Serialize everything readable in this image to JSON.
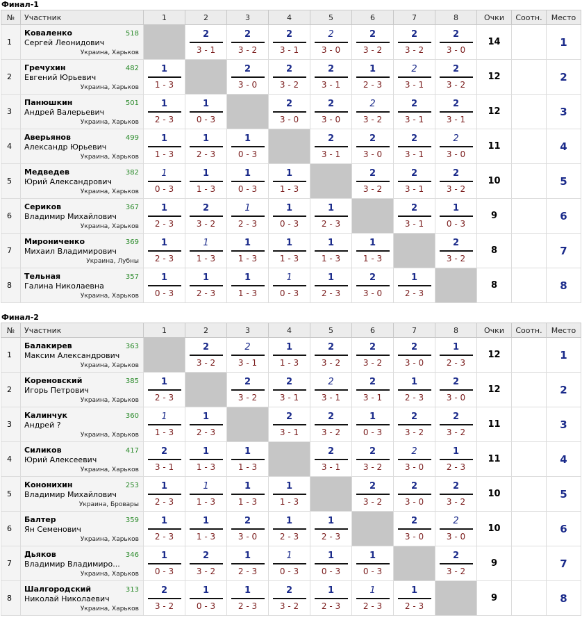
{
  "headers": {
    "num": "№",
    "participant": "Участник",
    "rounds": [
      "1",
      "2",
      "3",
      "4",
      "5",
      "6",
      "7",
      "8"
    ],
    "points": "Очки",
    "ratio": "Соотн.",
    "place": "Место"
  },
  "finals": [
    {
      "title": "Финал-1",
      "rows": [
        {
          "num": "1",
          "name": "Коваленко",
          "full": "Сергей Леонидович",
          "rating": "518",
          "city": "Украина, Харьков",
          "points": "14",
          "ratio": "",
          "place": "1",
          "cells": [
            null,
            {
              "p": "2",
              "s": "3 - 1"
            },
            {
              "p": "2",
              "s": "3 - 2"
            },
            {
              "p": "2",
              "s": "3 - 1"
            },
            {
              "p": "2",
              "s": "3 - 0",
              "i": true
            },
            {
              "p": "2",
              "s": "3 - 2"
            },
            {
              "p": "2",
              "s": "3 - 2"
            },
            {
              "p": "2",
              "s": "3 - 0"
            }
          ]
        },
        {
          "num": "2",
          "name": "Гречухин",
          "full": "Евгений Юрьевич",
          "rating": "482",
          "city": "Украина, Харьков",
          "points": "12",
          "ratio": "",
          "place": "2",
          "cells": [
            {
              "p": "1",
              "s": "1 - 3"
            },
            null,
            {
              "p": "2",
              "s": "3 - 0"
            },
            {
              "p": "2",
              "s": "3 - 2"
            },
            {
              "p": "2",
              "s": "3 - 1"
            },
            {
              "p": "1",
              "s": "2 - 3"
            },
            {
              "p": "2",
              "s": "3 - 1",
              "i": true
            },
            {
              "p": "2",
              "s": "3 - 2"
            }
          ]
        },
        {
          "num": "3",
          "name": "Панюшкин",
          "full": "Андрей Валерьевич",
          "rating": "501",
          "city": "Украина, Харьков",
          "points": "12",
          "ratio": "",
          "place": "3",
          "cells": [
            {
              "p": "1",
              "s": "2 - 3"
            },
            {
              "p": "1",
              "s": "0 - 3"
            },
            null,
            {
              "p": "2",
              "s": "3 - 0"
            },
            {
              "p": "2",
              "s": "3 - 0"
            },
            {
              "p": "2",
              "s": "3 - 2",
              "i": true
            },
            {
              "p": "2",
              "s": "3 - 1"
            },
            {
              "p": "2",
              "s": "3 - 1"
            }
          ]
        },
        {
          "num": "4",
          "name": "Аверьянов",
          "full": "Александр Юрьевич",
          "rating": "499",
          "city": "Украина, Харьков",
          "points": "11",
          "ratio": "",
          "place": "4",
          "cells": [
            {
              "p": "1",
              "s": "1 - 3"
            },
            {
              "p": "1",
              "s": "2 - 3"
            },
            {
              "p": "1",
              "s": "0 - 3"
            },
            null,
            {
              "p": "2",
              "s": "3 - 1"
            },
            {
              "p": "2",
              "s": "3 - 0"
            },
            {
              "p": "2",
              "s": "3 - 1"
            },
            {
              "p": "2",
              "s": "3 - 0",
              "i": true
            }
          ]
        },
        {
          "num": "5",
          "name": "Медведев",
          "full": "Юрий Александрович",
          "rating": "382",
          "city": "Украина, Харьков",
          "points": "10",
          "ratio": "",
          "place": "5",
          "cells": [
            {
              "p": "1",
              "s": "0 - 3",
              "i": true
            },
            {
              "p": "1",
              "s": "1 - 3"
            },
            {
              "p": "1",
              "s": "0 - 3"
            },
            {
              "p": "1",
              "s": "1 - 3"
            },
            null,
            {
              "p": "2",
              "s": "3 - 2"
            },
            {
              "p": "2",
              "s": "3 - 1"
            },
            {
              "p": "2",
              "s": "3 - 2"
            }
          ]
        },
        {
          "num": "6",
          "name": "Сериков",
          "full": "Владимир Михайлович",
          "rating": "367",
          "city": "Украина, Харьков",
          "points": "9",
          "ratio": "",
          "place": "6",
          "cells": [
            {
              "p": "1",
              "s": "2 - 3"
            },
            {
              "p": "2",
              "s": "3 - 2"
            },
            {
              "p": "1",
              "s": "2 - 3",
              "i": true
            },
            {
              "p": "1",
              "s": "0 - 3"
            },
            {
              "p": "1",
              "s": "2 - 3"
            },
            null,
            {
              "p": "2",
              "s": "3 - 1"
            },
            {
              "p": "1",
              "s": "0 - 3"
            }
          ]
        },
        {
          "num": "7",
          "name": "Мирониченко",
          "full": "Михаил Владимирович",
          "rating": "369",
          "city": "Украина, Лубны",
          "points": "8",
          "ratio": "",
          "place": "7",
          "cells": [
            {
              "p": "1",
              "s": "2 - 3"
            },
            {
              "p": "1",
              "s": "1 - 3",
              "i": true
            },
            {
              "p": "1",
              "s": "1 - 3"
            },
            {
              "p": "1",
              "s": "1 - 3"
            },
            {
              "p": "1",
              "s": "1 - 3"
            },
            {
              "p": "1",
              "s": "1 - 3"
            },
            null,
            {
              "p": "2",
              "s": "3 - 2"
            }
          ]
        },
        {
          "num": "8",
          "name": "Тельная",
          "full": "Галина Николаевна",
          "rating": "357",
          "city": "Украина, Харьков",
          "points": "8",
          "ratio": "",
          "place": "8",
          "cells": [
            {
              "p": "1",
              "s": "0 - 3"
            },
            {
              "p": "1",
              "s": "2 - 3"
            },
            {
              "p": "1",
              "s": "1 - 3"
            },
            {
              "p": "1",
              "s": "0 - 3",
              "i": true
            },
            {
              "p": "1",
              "s": "2 - 3"
            },
            {
              "p": "2",
              "s": "3 - 0"
            },
            {
              "p": "1",
              "s": "2 - 3"
            },
            null
          ]
        }
      ]
    },
    {
      "title": "Финал-2",
      "rows": [
        {
          "num": "1",
          "name": "Балакирев",
          "full": "Максим Александрович",
          "rating": "363",
          "city": "Украина, Харьков",
          "points": "12",
          "ratio": "",
          "place": "1",
          "cells": [
            null,
            {
              "p": "2",
              "s": "3 - 2"
            },
            {
              "p": "2",
              "s": "3 - 1",
              "i": true
            },
            {
              "p": "1",
              "s": "1 - 3"
            },
            {
              "p": "2",
              "s": "3 - 2"
            },
            {
              "p": "2",
              "s": "3 - 2"
            },
            {
              "p": "2",
              "s": "3 - 0"
            },
            {
              "p": "1",
              "s": "2 - 3"
            }
          ]
        },
        {
          "num": "2",
          "name": "Кореновский",
          "full": "Игорь Петрович",
          "rating": "385",
          "city": "Украина, Харьков",
          "points": "12",
          "ratio": "",
          "place": "2",
          "cells": [
            {
              "p": "1",
              "s": "2 - 3"
            },
            null,
            {
              "p": "2",
              "s": "3 - 2"
            },
            {
              "p": "2",
              "s": "3 - 1"
            },
            {
              "p": "2",
              "s": "3 - 1",
              "i": true
            },
            {
              "p": "2",
              "s": "3 - 1"
            },
            {
              "p": "1",
              "s": "2 - 3"
            },
            {
              "p": "2",
              "s": "3 - 0"
            }
          ]
        },
        {
          "num": "3",
          "name": "Калинчук",
          "full": "Андрей ?",
          "rating": "360",
          "city": "Украина, Харьков",
          "points": "11",
          "ratio": "",
          "place": "3",
          "cells": [
            {
              "p": "1",
              "s": "1 - 3",
              "i": true
            },
            {
              "p": "1",
              "s": "2 - 3"
            },
            null,
            {
              "p": "2",
              "s": "3 - 1"
            },
            {
              "p": "2",
              "s": "3 - 2"
            },
            {
              "p": "1",
              "s": "0 - 3"
            },
            {
              "p": "2",
              "s": "3 - 2"
            },
            {
              "p": "2",
              "s": "3 - 2"
            }
          ]
        },
        {
          "num": "4",
          "name": "Силиков",
          "full": "Юрий Алексеевич",
          "rating": "417",
          "city": "Украина, Харьков",
          "points": "11",
          "ratio": "",
          "place": "4",
          "cells": [
            {
              "p": "2",
              "s": "3 - 1"
            },
            {
              "p": "1",
              "s": "1 - 3"
            },
            {
              "p": "1",
              "s": "1 - 3"
            },
            null,
            {
              "p": "2",
              "s": "3 - 1"
            },
            {
              "p": "2",
              "s": "3 - 2"
            },
            {
              "p": "2",
              "s": "3 - 0",
              "i": true
            },
            {
              "p": "1",
              "s": "2 - 3"
            }
          ]
        },
        {
          "num": "5",
          "name": "Кононихин",
          "full": "Владимир Михайлович",
          "rating": "253",
          "city": "Украина, Бровары",
          "points": "10",
          "ratio": "",
          "place": "5",
          "cells": [
            {
              "p": "1",
              "s": "2 - 3"
            },
            {
              "p": "1",
              "s": "1 - 3",
              "i": true
            },
            {
              "p": "1",
              "s": "1 - 3"
            },
            {
              "p": "1",
              "s": "1 - 3"
            },
            null,
            {
              "p": "2",
              "s": "3 - 2"
            },
            {
              "p": "2",
              "s": "3 - 0"
            },
            {
              "p": "2",
              "s": "3 - 2"
            }
          ]
        },
        {
          "num": "6",
          "name": "Балтер",
          "full": "Ян Семенович",
          "rating": "359",
          "city": "Украина, Харьков",
          "points": "10",
          "ratio": "",
          "place": "6",
          "cells": [
            {
              "p": "1",
              "s": "2 - 3"
            },
            {
              "p": "1",
              "s": "1 - 3"
            },
            {
              "p": "2",
              "s": "3 - 0"
            },
            {
              "p": "1",
              "s": "2 - 3"
            },
            {
              "p": "1",
              "s": "2 - 3"
            },
            null,
            {
              "p": "2",
              "s": "3 - 0"
            },
            {
              "p": "2",
              "s": "3 - 0",
              "i": true
            }
          ]
        },
        {
          "num": "7",
          "name": "Дьяков",
          "full": "Владимир Владимиро...",
          "rating": "346",
          "city": "Украина, Харьков",
          "points": "9",
          "ratio": "",
          "place": "7",
          "cells": [
            {
              "p": "1",
              "s": "0 - 3"
            },
            {
              "p": "2",
              "s": "3 - 2"
            },
            {
              "p": "1",
              "s": "2 - 3"
            },
            {
              "p": "1",
              "s": "0 - 3",
              "i": true
            },
            {
              "p": "1",
              "s": "0 - 3"
            },
            {
              "p": "1",
              "s": "0 - 3"
            },
            null,
            {
              "p": "2",
              "s": "3 - 2"
            }
          ]
        },
        {
          "num": "8",
          "name": "Шалгородский",
          "full": "Николай Николаевич",
          "rating": "313",
          "city": "Украина, Харьков",
          "points": "9",
          "ratio": "",
          "place": "8",
          "cells": [
            {
              "p": "2",
              "s": "3 - 2"
            },
            {
              "p": "1",
              "s": "0 - 3"
            },
            {
              "p": "1",
              "s": "2 - 3"
            },
            {
              "p": "2",
              "s": "3 - 2"
            },
            {
              "p": "1",
              "s": "2 - 3"
            },
            {
              "p": "1",
              "s": "2 - 3",
              "i": true
            },
            {
              "p": "1",
              "s": "2 - 3"
            },
            null
          ]
        }
      ]
    }
  ]
}
